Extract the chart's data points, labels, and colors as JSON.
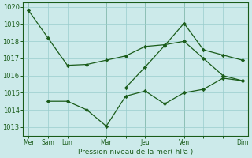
{
  "xlabel": "Pression niveau de la mer( hPa )",
  "bg_color": "#cceaea",
  "grid_color": "#99cccc",
  "line_color": "#1a5c1a",
  "dark_line_color": "#1a5c1a",
  "ylim": [
    1012.5,
    1020.25
  ],
  "xlim": [
    -0.3,
    11.3
  ],
  "xtick_positions": [
    0,
    1,
    2,
    3,
    4,
    5,
    6,
    7,
    8,
    9,
    10,
    11
  ],
  "xtick_labels": [
    "Mer",
    "Sam",
    "Lun",
    "",
    "Mar",
    "",
    "Jeu",
    "",
    "Ven",
    "",
    "",
    "Dim"
  ],
  "major_vline_pos": [
    0,
    4,
    6,
    8,
    11
  ],
  "ytick_vals": [
    1013,
    1014,
    1015,
    1016,
    1017,
    1018,
    1019,
    1020
  ],
  "series1_x": [
    0,
    1,
    2,
    3,
    4,
    5,
    6,
    7,
    8,
    9,
    10,
    11
  ],
  "series1_y": [
    1019.8,
    1018.2,
    1016.6,
    1016.65,
    1016.9,
    1017.15,
    1017.7,
    1017.8,
    1018.0,
    1017.0,
    1016.0,
    1015.7
  ],
  "series2_x": [
    1,
    2,
    3,
    4,
    5,
    6,
    7,
    8,
    9,
    10,
    11
  ],
  "series2_y": [
    1014.5,
    1014.5,
    1014.0,
    1013.05,
    1014.8,
    1015.1,
    1014.35,
    1015.0,
    1015.2,
    1015.85,
    1015.7
  ],
  "series3_x": [
    5,
    6,
    7,
    8,
    9,
    10,
    11
  ],
  "series3_y": [
    1015.3,
    1016.5,
    1017.75,
    1019.05,
    1017.5,
    1017.2,
    1016.9
  ]
}
